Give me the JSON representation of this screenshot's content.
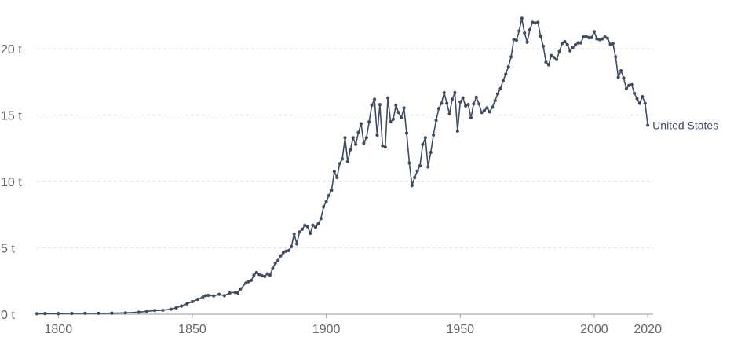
{
  "chart_data": {
    "type": "line",
    "title": "",
    "xlabel": "",
    "ylabel": "",
    "xlim": [
      1792,
      2022
    ],
    "ylim": [
      0,
      22.5
    ],
    "grid": true,
    "line_color": "#3e4c61",
    "grid_color": "#dddddd",
    "axis_color": "#999999",
    "legend": "inline-right",
    "x_ticks": [
      {
        "value": 1800,
        "label": "1800"
      },
      {
        "value": 1850,
        "label": "1850"
      },
      {
        "value": 1900,
        "label": "1900"
      },
      {
        "value": 1950,
        "label": "1950"
      },
      {
        "value": 2000,
        "label": "2000"
      },
      {
        "value": 2020,
        "label": "2020"
      }
    ],
    "y_ticks": [
      {
        "value": 0,
        "label": "0 t"
      },
      {
        "value": 5,
        "label": "5 t"
      },
      {
        "value": 10,
        "label": "10 t"
      },
      {
        "value": 15,
        "label": "15 t"
      },
      {
        "value": 20,
        "label": "20 t"
      }
    ],
    "series": [
      {
        "name": "United States",
        "points": [
          [
            1792,
            0.04
          ],
          [
            1795,
            0.05
          ],
          [
            1800,
            0.05
          ],
          [
            1805,
            0.06
          ],
          [
            1810,
            0.07
          ],
          [
            1815,
            0.07
          ],
          [
            1820,
            0.08
          ],
          [
            1825,
            0.1
          ],
          [
            1830,
            0.15
          ],
          [
            1833,
            0.22
          ],
          [
            1836,
            0.28
          ],
          [
            1839,
            0.3
          ],
          [
            1842,
            0.38
          ],
          [
            1844,
            0.48
          ],
          [
            1846,
            0.62
          ],
          [
            1848,
            0.78
          ],
          [
            1850,
            0.95
          ],
          [
            1852,
            1.12
          ],
          [
            1854,
            1.3
          ],
          [
            1855,
            1.4
          ],
          [
            1856,
            1.42
          ],
          [
            1858,
            1.38
          ],
          [
            1860,
            1.5
          ],
          [
            1862,
            1.4
          ],
          [
            1864,
            1.6
          ],
          [
            1866,
            1.65
          ],
          [
            1867,
            1.6
          ],
          [
            1868,
            1.9
          ],
          [
            1870,
            2.35
          ],
          [
            1871,
            2.45
          ],
          [
            1872,
            2.55
          ],
          [
            1873,
            2.95
          ],
          [
            1874,
            3.15
          ],
          [
            1875,
            3.0
          ],
          [
            1876,
            2.9
          ],
          [
            1877,
            2.85
          ],
          [
            1878,
            3.05
          ],
          [
            1879,
            2.95
          ],
          [
            1880,
            3.45
          ],
          [
            1881,
            3.85
          ],
          [
            1882,
            4.05
          ],
          [
            1883,
            4.4
          ],
          [
            1884,
            4.65
          ],
          [
            1885,
            4.75
          ],
          [
            1886,
            4.8
          ],
          [
            1887,
            5.1
          ],
          [
            1888,
            6.05
          ],
          [
            1889,
            5.3
          ],
          [
            1890,
            6.2
          ],
          [
            1891,
            6.4
          ],
          [
            1892,
            6.7
          ],
          [
            1893,
            6.6
          ],
          [
            1894,
            6.1
          ],
          [
            1895,
            6.7
          ],
          [
            1896,
            6.55
          ],
          [
            1897,
            6.8
          ],
          [
            1898,
            7.2
          ],
          [
            1899,
            8.1
          ],
          [
            1900,
            8.5
          ],
          [
            1901,
            8.95
          ],
          [
            1902,
            9.35
          ],
          [
            1903,
            10.75
          ],
          [
            1904,
            10.3
          ],
          [
            1905,
            11.35
          ],
          [
            1906,
            11.7
          ],
          [
            1907,
            13.3
          ],
          [
            1908,
            11.5
          ],
          [
            1909,
            12.4
          ],
          [
            1910,
            13.3
          ],
          [
            1911,
            12.8
          ],
          [
            1912,
            13.7
          ],
          [
            1913,
            14.35
          ],
          [
            1914,
            12.9
          ],
          [
            1915,
            13.3
          ],
          [
            1916,
            14.5
          ],
          [
            1917,
            15.75
          ],
          [
            1918,
            16.2
          ],
          [
            1919,
            13.5
          ],
          [
            1920,
            15.8
          ],
          [
            1921,
            12.7
          ],
          [
            1922,
            12.6
          ],
          [
            1923,
            16.3
          ],
          [
            1924,
            14.5
          ],
          [
            1925,
            14.7
          ],
          [
            1926,
            15.75
          ],
          [
            1927,
            15.2
          ],
          [
            1928,
            14.8
          ],
          [
            1929,
            15.55
          ],
          [
            1930,
            13.65
          ],
          [
            1931,
            11.4
          ],
          [
            1932,
            9.7
          ],
          [
            1933,
            10.3
          ],
          [
            1934,
            10.8
          ],
          [
            1935,
            11.2
          ],
          [
            1936,
            12.8
          ],
          [
            1937,
            13.3
          ],
          [
            1938,
            11.1
          ],
          [
            1939,
            12.2
          ],
          [
            1940,
            13.5
          ],
          [
            1941,
            14.6
          ],
          [
            1942,
            15.5
          ],
          [
            1943,
            15.9
          ],
          [
            1944,
            16.7
          ],
          [
            1945,
            15.9
          ],
          [
            1946,
            15.1
          ],
          [
            1947,
            16.2
          ],
          [
            1948,
            16.7
          ],
          [
            1949,
            13.8
          ],
          [
            1950,
            16.0
          ],
          [
            1951,
            16.3
          ],
          [
            1952,
            15.7
          ],
          [
            1953,
            15.8
          ],
          [
            1954,
            14.8
          ],
          [
            1955,
            15.85
          ],
          [
            1956,
            16.35
          ],
          [
            1957,
            15.85
          ],
          [
            1958,
            15.2
          ],
          [
            1959,
            15.35
          ],
          [
            1960,
            15.55
          ],
          [
            1961,
            15.25
          ],
          [
            1962,
            15.6
          ],
          [
            1963,
            16.1
          ],
          [
            1964,
            16.6
          ],
          [
            1965,
            17.0
          ],
          [
            1966,
            17.6
          ],
          [
            1967,
            18.1
          ],
          [
            1968,
            18.65
          ],
          [
            1969,
            19.4
          ],
          [
            1970,
            20.7
          ],
          [
            1971,
            20.65
          ],
          [
            1972,
            21.35
          ],
          [
            1973,
            22.3
          ],
          [
            1974,
            21.2
          ],
          [
            1975,
            20.5
          ],
          [
            1976,
            21.45
          ],
          [
            1977,
            22.0
          ],
          [
            1978,
            21.95
          ],
          [
            1979,
            22.0
          ],
          [
            1980,
            20.95
          ],
          [
            1981,
            20.2
          ],
          [
            1982,
            19.0
          ],
          [
            1983,
            18.8
          ],
          [
            1984,
            19.5
          ],
          [
            1985,
            19.35
          ],
          [
            1986,
            19.2
          ],
          [
            1987,
            19.8
          ],
          [
            1988,
            20.4
          ],
          [
            1989,
            20.55
          ],
          [
            1990,
            20.3
          ],
          [
            1991,
            19.85
          ],
          [
            1992,
            20.1
          ],
          [
            1993,
            20.3
          ],
          [
            1994,
            20.45
          ],
          [
            1995,
            20.45
          ],
          [
            1996,
            20.9
          ],
          [
            1997,
            20.95
          ],
          [
            1998,
            20.85
          ],
          [
            1999,
            20.85
          ],
          [
            2000,
            21.3
          ],
          [
            2001,
            20.75
          ],
          [
            2002,
            20.7
          ],
          [
            2003,
            20.75
          ],
          [
            2004,
            20.9
          ],
          [
            2005,
            20.8
          ],
          [
            2006,
            20.35
          ],
          [
            2007,
            20.4
          ],
          [
            2008,
            19.4
          ],
          [
            2009,
            17.85
          ],
          [
            2010,
            18.35
          ],
          [
            2011,
            17.8
          ],
          [
            2012,
            17.0
          ],
          [
            2013,
            17.25
          ],
          [
            2014,
            17.3
          ],
          [
            2015,
            16.65
          ],
          [
            2016,
            16.25
          ],
          [
            2017,
            15.9
          ],
          [
            2018,
            16.4
          ],
          [
            2019,
            15.9
          ],
          [
            2020,
            14.25
          ]
        ]
      }
    ]
  }
}
